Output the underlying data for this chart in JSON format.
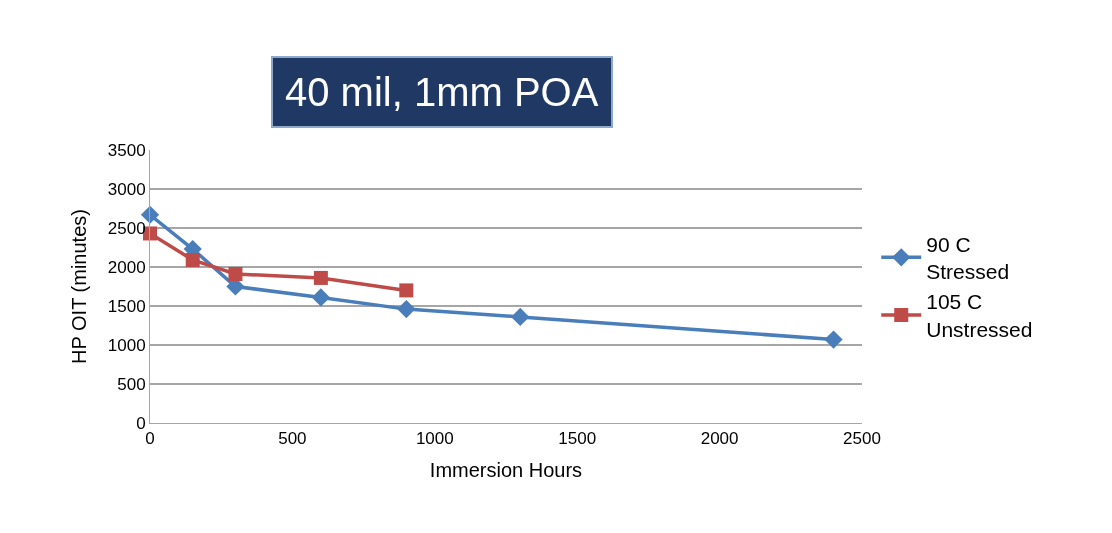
{
  "chart_data": {
    "type": "line",
    "title": "40 mil, 1mm POA",
    "xlabel": "Immersion Hours",
    "ylabel": "HP OIT (minutes)",
    "series": [
      {
        "name": "90 C\nStressed",
        "color": "#4a7ebb",
        "marker": "diamond",
        "x": [
          0,
          150,
          300,
          600,
          900,
          1300,
          2400
        ],
        "values": [
          2670,
          2230,
          1750,
          1610,
          1460,
          1360,
          1070
        ]
      },
      {
        "name": "105 C\nUnstressed",
        "color": "#be4b48",
        "marker": "square",
        "x": [
          0,
          150,
          300,
          600,
          900
        ],
        "values": [
          2430,
          2090,
          1910,
          1860,
          1700
        ]
      }
    ],
    "xlim": [
      0,
      2500
    ],
    "xticks": [
      0,
      500,
      1000,
      1500,
      2000,
      2500
    ],
    "ylim": [
      0,
      3500
    ],
    "yticks": [
      0,
      500,
      1000,
      1500,
      2000,
      2500,
      3000,
      3500
    ],
    "grid": "y",
    "legend": "right",
    "line_style": "solid"
  }
}
